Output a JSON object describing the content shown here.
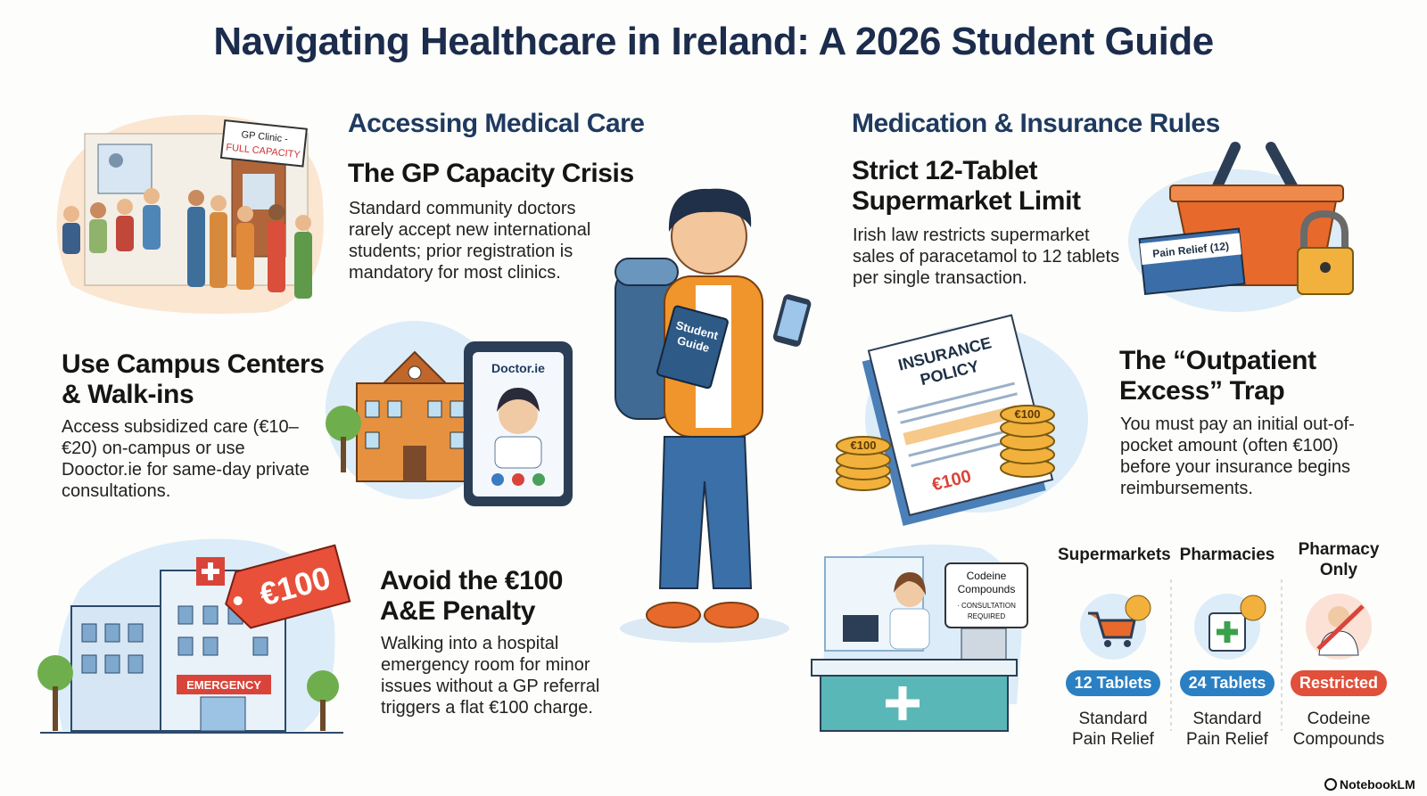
{
  "title": "Navigating Healthcare in Ireland: A 2026 Student Guide",
  "left_section": {
    "heading": "Accessing Medical Care",
    "items": [
      {
        "title": "The GP Capacity Crisis",
        "body": "Standard community doctors rarely accept new international students; prior registration is mandatory for most clinics."
      },
      {
        "title": "Use Campus Centers & Walk-ins",
        "body": "Access subsidized care (€10–€20) on-campus or use Dooctor.ie for same-day private consultations."
      },
      {
        "title": "Avoid the €100 A&E Penalty",
        "body": "Walking into a hospital emergency room for minor issues without a GP referral triggers a flat €100 charge."
      }
    ]
  },
  "right_section": {
    "heading": "Medication & Insurance Rules",
    "items": [
      {
        "title": "Strict 12-Tablet Supermarket Limit",
        "body": "Irish law restricts supermarket sales of paracetamol to 12 tablets per single transaction."
      },
      {
        "title": "The “Outpatient Excess” Trap",
        "body": "You must pay an initial out-of-pocket amount (often €100) before your insurance begins reimbursements."
      }
    ]
  },
  "illustrations": {
    "clinic_sign": [
      "GP Clinic -",
      "FULL CAPACITY"
    ],
    "book_label": [
      "Student",
      "Guide"
    ],
    "tablet_app": "Doctor.ie",
    "emergency_sign": "EMERGENCY",
    "price_tag": "€100",
    "pain_relief_box": "Pain Relief (12)",
    "insurance_doc": [
      "INSURANCE",
      "POLICY"
    ],
    "doc_amount": "€100",
    "coin_left": "€100",
    "coin_right": "€100",
    "pharmacy_sign": [
      "Codeine",
      "Compounds",
      "· CONSULTATION",
      "REQUIRED"
    ]
  },
  "comparison": {
    "columns": [
      {
        "header": "Supermarkets",
        "badge": "12 Tablets",
        "caption": "Standard Pain Relief"
      },
      {
        "header": "Pharmacies",
        "badge": "24 Tablets",
        "caption": "Standard Pain Relief"
      },
      {
        "header": "Pharmacy Only",
        "badge": "Restricted",
        "caption": "Codeine Compounds"
      }
    ]
  },
  "footer": "NotebookLM"
}
